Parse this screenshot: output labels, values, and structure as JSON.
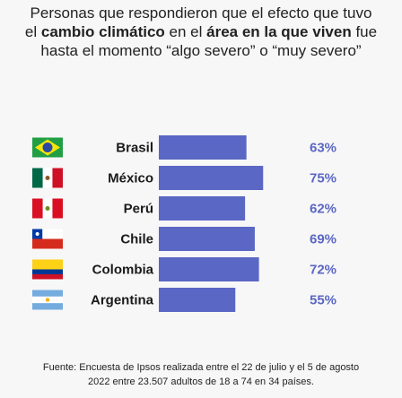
{
  "title": {
    "line1": "Personas que respondieron que el efecto que tuvo",
    "line2_pre": "el ",
    "line2_bold1": "cambio climático",
    "line2_mid": " en el ",
    "line2_bold2": "área en la que viven",
    "line2_post": " fue",
    "line3": "hasta el momento “algo severo” o “muy severo”"
  },
  "colors": {
    "bar": "#5b67c4",
    "value_text": "#5b67c4",
    "label_text": "#1a1a1a"
  },
  "chart_data": {
    "type": "bar",
    "orientation": "horizontal",
    "categories": [
      "Brasil",
      "México",
      "Perú",
      "Chile",
      "Colombia",
      "Argentina"
    ],
    "values": [
      63,
      75,
      62,
      69,
      72,
      55
    ],
    "value_labels": [
      "63%",
      "75%",
      "62%",
      "69%",
      "72%",
      "55%"
    ],
    "flags": [
      "brazil-flag",
      "mexico-flag",
      "peru-flag",
      "chile-flag",
      "colombia-flag",
      "argentina-flag"
    ],
    "xlim": [
      0,
      100
    ],
    "grid": false
  },
  "source": {
    "line1": "Fuente: Encuesta de Ipsos realizada entre el 22 de julio y el 5 de agosto",
    "line2": "2022 entre 23.507 adultos de 18 a 74 en 34 países."
  }
}
